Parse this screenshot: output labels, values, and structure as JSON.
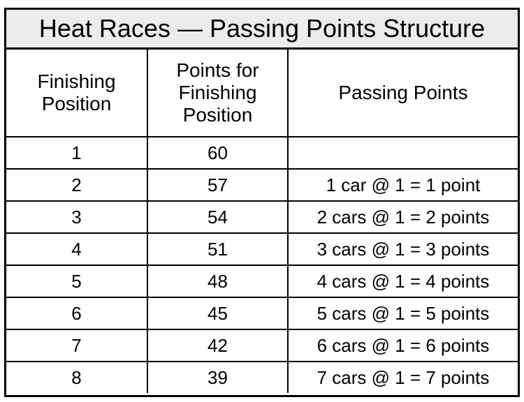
{
  "title": "Heat Races — Passing Points Structure",
  "headers": {
    "col1": [
      "Finishing",
      "Position"
    ],
    "col2": [
      "Points for",
      "Finishing",
      "Position"
    ],
    "col3": "Passing Points"
  },
  "rows": [
    {
      "position": "1",
      "points": "60",
      "passing": ""
    },
    {
      "position": "2",
      "points": "57",
      "passing": "1 car @ 1 = 1 point"
    },
    {
      "position": "3",
      "points": "54",
      "passing": "2 cars @ 1 = 2 points"
    },
    {
      "position": "4",
      "points": "51",
      "passing": "3 cars @ 1 = 3 points"
    },
    {
      "position": "5",
      "points": "48",
      "passing": "4 cars @ 1 = 4 points"
    },
    {
      "position": "6",
      "points": "45",
      "passing": "5 cars @ 1 = 5 points"
    },
    {
      "position": "7",
      "points": "42",
      "passing": "6 cars @ 1 = 6 points"
    },
    {
      "position": "8",
      "points": "39",
      "passing": "7 cars @ 1 = 7 points"
    }
  ],
  "colors": {
    "title_background": "#ececec",
    "border": "#000000",
    "text": "#000000"
  }
}
